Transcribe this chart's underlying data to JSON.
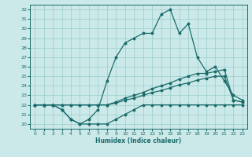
{
  "xlabel": "Humidex (Indice chaleur)",
  "xlim": [
    -0.5,
    23.5
  ],
  "ylim": [
    19.5,
    32.5
  ],
  "xticks": [
    0,
    1,
    2,
    3,
    4,
    5,
    6,
    7,
    8,
    9,
    10,
    11,
    12,
    13,
    14,
    15,
    16,
    17,
    18,
    19,
    20,
    21,
    22,
    23
  ],
  "yticks": [
    20,
    21,
    22,
    23,
    24,
    25,
    26,
    27,
    28,
    29,
    30,
    31,
    32
  ],
  "background_color": "#cce9e9",
  "grid_color": "#99cccc",
  "line_color": "#1a6b6b",
  "line_top_x": [
    0,
    1,
    2,
    3,
    4,
    5,
    6,
    7,
    8,
    9,
    10,
    11,
    12,
    13,
    14,
    15,
    16,
    17,
    18,
    19,
    20,
    21,
    22,
    23
  ],
  "line_top_y": [
    22,
    22,
    22,
    21.5,
    20.5,
    20,
    20.5,
    21.5,
    24.5,
    27,
    28.5,
    29,
    29.5,
    29.5,
    31.5,
    32,
    29.5,
    30.5,
    27,
    25.5,
    26,
    24.5,
    23,
    22.5
  ],
  "line_mid2_x": [
    0,
    1,
    2,
    3,
    4,
    5,
    6,
    7,
    8,
    9,
    10,
    11,
    12,
    13,
    14,
    15,
    16,
    17,
    18,
    19,
    20,
    21,
    22,
    23
  ],
  "line_mid2_y": [
    22,
    22,
    22,
    22,
    22,
    22,
    22,
    22,
    22,
    22.3,
    22.7,
    23,
    23.3,
    23.7,
    24,
    24.3,
    24.7,
    25,
    25.3,
    25.3,
    25.5,
    25.7,
    22.5,
    22.3
  ],
  "line_mid1_x": [
    0,
    1,
    2,
    3,
    4,
    5,
    6,
    7,
    8,
    9,
    10,
    11,
    12,
    13,
    14,
    15,
    16,
    17,
    18,
    19,
    20,
    21,
    22,
    23
  ],
  "line_mid1_y": [
    22,
    22,
    22,
    22,
    22,
    22,
    22,
    22,
    22,
    22.2,
    22.5,
    22.7,
    23,
    23.3,
    23.5,
    23.8,
    24.1,
    24.3,
    24.6,
    24.8,
    25,
    25.0,
    22.5,
    22.3
  ],
  "line_bot_x": [
    0,
    1,
    2,
    3,
    4,
    5,
    6,
    7,
    8,
    9,
    10,
    11,
    12,
    13,
    14,
    15,
    16,
    17,
    18,
    19,
    20,
    21,
    22,
    23
  ],
  "line_bot_y": [
    22,
    22,
    22,
    21.5,
    20.5,
    20,
    20,
    20,
    20,
    20.5,
    21,
    21.5,
    22,
    22,
    22,
    22,
    22,
    22,
    22,
    22,
    22,
    22,
    22,
    22
  ]
}
